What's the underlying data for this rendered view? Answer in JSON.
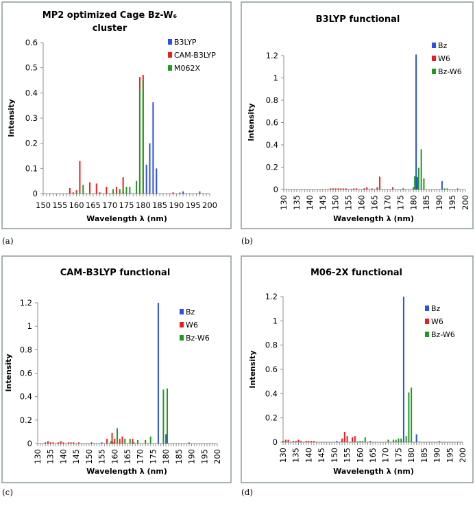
{
  "panel_labels": [
    "(a)",
    "(b)",
    "(c)",
    "(d)"
  ],
  "chart_data": [
    {
      "type": "bar",
      "title": [
        "MP2 optimized Cage Bz-W₆",
        "cluster"
      ],
      "xlabel": "Wavelength λ (nm)",
      "ylabel": "Intensity",
      "xlim": [
        150,
        200
      ],
      "ylim": [
        0,
        0.6
      ],
      "xticks": [
        "150",
        "155",
        "160",
        "165",
        "170",
        "175",
        "180",
        "185",
        "190",
        "195",
        "200"
      ],
      "yticks": [
        "0",
        "0.1",
        "0.2",
        "0.3",
        "0.4",
        "0.5",
        "0.6"
      ],
      "legend": "top-right",
      "series": [
        {
          "name": "B3LYP",
          "color": "#2b50e8",
          "points": [
            [
              174,
              0.009
            ],
            [
              175,
              0.004
            ],
            [
              181,
              0.115
            ],
            [
              182,
              0.2
            ],
            [
              183,
              0.363
            ],
            [
              184,
              0.1
            ],
            [
              191,
              0.004
            ],
            [
              192,
              0.009
            ],
            [
              197,
              0.009
            ]
          ]
        },
        {
          "name": "CAM-B3LYP",
          "color": "#f01c1c",
          "points": [
            [
              158,
              0.022
            ],
            [
              159,
              0.005
            ],
            [
              160,
              0.013
            ],
            [
              161,
              0.13
            ],
            [
              164,
              0.045
            ],
            [
              166,
              0.04
            ],
            [
              167,
              0.005
            ],
            [
              169,
              0.027
            ],
            [
              172,
              0.027
            ],
            [
              174,
              0.065
            ],
            [
              179,
              0.463
            ],
            [
              180,
              0.472
            ],
            [
              189,
              0.005
            ]
          ]
        },
        {
          "name": "M062X",
          "color": "#1e9a1e",
          "points": [
            [
              160,
              0.004
            ],
            [
              161,
              0.004
            ],
            [
              162,
              0.035
            ],
            [
              164,
              0.004
            ],
            [
              171,
              0.018
            ],
            [
              173,
              0.018
            ],
            [
              174,
              0.018
            ],
            [
              175,
              0.027
            ],
            [
              176,
              0.027
            ],
            [
              178,
              0.05
            ],
            [
              179,
              0.413
            ],
            [
              180,
              0.45
            ],
            [
              191,
              0.004
            ]
          ]
        }
      ]
    },
    {
      "type": "bar",
      "title": [
        "B3LYP functional"
      ],
      "xlabel": "Wavelength λ (nm)",
      "ylabel": "Intensity",
      "xlim": [
        130,
        200
      ],
      "ylim": [
        0,
        1.2
      ],
      "xticks": [
        "130",
        "135",
        "140",
        "145",
        "150",
        "155",
        "160",
        "165",
        "170",
        "175",
        "180",
        "185",
        "190",
        "195",
        "200"
      ],
      "yticks": [
        "0",
        "0.2",
        "0.4",
        "0.6",
        "0.8",
        "1",
        "1.2"
      ],
      "legend": "top-right",
      "series": [
        {
          "name": "Bz",
          "color": "#2b50e8",
          "points": [
            [
              156,
              0.005
            ],
            [
              161,
              0.01
            ],
            [
              181,
              1.21
            ],
            [
              181.5,
              0.11
            ],
            [
              191,
              0.075
            ]
          ]
        },
        {
          "name": "W6",
          "color": "#f01c1c",
          "points": [
            [
              148,
              0.01
            ],
            [
              149,
              0.01
            ],
            [
              150,
              0.01
            ],
            [
              151,
              0.01
            ],
            [
              152,
              0.01
            ],
            [
              153,
              0.01
            ],
            [
              154,
              0.01
            ],
            [
              157,
              0.01
            ],
            [
              158,
              0.01
            ],
            [
              161,
              0.01
            ],
            [
              162,
              0.02
            ],
            [
              164,
              0.01
            ],
            [
              166,
              0.02
            ],
            [
              167,
              0.115
            ],
            [
              172,
              0.02
            ],
            [
              176,
              0.01
            ],
            [
              180,
              0.02
            ]
          ]
        },
        {
          "name": "Bz-W6",
          "color": "#1e9a1e",
          "points": [
            [
              176,
              0.01
            ],
            [
              180,
              0.02
            ],
            [
              180.5,
              0.12
            ],
            [
              182,
              0.195
            ],
            [
              183,
              0.36
            ],
            [
              184,
              0.1
            ],
            [
              192,
              0.01
            ],
            [
              193,
              0.01
            ],
            [
              197,
              0.01
            ]
          ]
        }
      ]
    },
    {
      "type": "bar",
      "title": [
        "CAM-B3LYP functional"
      ],
      "xlabel": "Wavelength λ (nm)",
      "ylabel": "Intensity",
      "xlim": [
        130,
        200
      ],
      "ylim": [
        0,
        1.2
      ],
      "xticks": [
        "130",
        "135",
        "140",
        "145",
        "150",
        "155",
        "160",
        "165",
        "170",
        "175",
        "180",
        "185",
        "190",
        "195",
        "200"
      ],
      "yticks": [
        "0",
        "0.2",
        "0.4",
        "0.6",
        "0.8",
        "1",
        "1.2"
      ],
      "legend": "top-right",
      "series": [
        {
          "name": "Bz",
          "color": "#2b50e8",
          "points": [
            [
              151,
              0.01
            ],
            [
              155,
              0.01
            ],
            [
              177,
              1.2
            ],
            [
              180,
              0.08
            ]
          ]
        },
        {
          "name": "W6",
          "color": "#f01c1c",
          "points": [
            [
              133,
              0.01
            ],
            [
              134,
              0.02
            ],
            [
              135,
              0.01
            ],
            [
              136,
              0.01
            ],
            [
              138,
              0.01
            ],
            [
              139,
              0.02
            ],
            [
              140,
              0.01
            ],
            [
              142,
              0.01
            ],
            [
              143,
              0.01
            ],
            [
              144,
              0.01
            ],
            [
              146,
              0.01
            ],
            [
              157,
              0.04
            ],
            [
              159,
              0.09
            ],
            [
              160,
              0.04
            ],
            [
              162,
              0.04
            ],
            [
              163,
              0.06
            ],
            [
              167,
              0.04
            ]
          ]
        },
        {
          "name": "Bz-W6",
          "color": "#1e9a1e",
          "points": [
            [
              158.5,
              0.02
            ],
            [
              159.5,
              0.01
            ],
            [
              161,
              0.13
            ],
            [
              164,
              0.04
            ],
            [
              166,
              0.04
            ],
            [
              167.5,
              0.01
            ],
            [
              169,
              0.03
            ],
            [
              172,
              0.03
            ],
            [
              174,
              0.06
            ],
            [
              179,
              0.46
            ],
            [
              180.5,
              0.47
            ],
            [
              189,
              0.01
            ]
          ]
        }
      ]
    },
    {
      "type": "bar",
      "title": [
        "M06-2X functional"
      ],
      "xlabel": "Wavelength λ (nm)",
      "ylabel": "Intensity",
      "xlim": [
        130,
        200
      ],
      "ylim": [
        0,
        1.2
      ],
      "xticks": [
        "130",
        "135",
        "140",
        "145",
        "150",
        "155",
        "160",
        "165",
        "170",
        "175",
        "180",
        "185",
        "190",
        "195",
        "200"
      ],
      "yticks": [
        "0",
        "0.2",
        "0.4",
        "0.6",
        "0.8",
        "1",
        "1.2"
      ],
      "legend": "top-right",
      "series": [
        {
          "name": "Bz",
          "color": "#2b50e8",
          "points": [
            [
              151,
              0.01
            ],
            [
              159,
              0.005
            ],
            [
              177,
              1.2
            ],
            [
              182,
              0.065
            ]
          ]
        },
        {
          "name": "W6",
          "color": "#f01c1c",
          "points": [
            [
              130,
              0.01
            ],
            [
              131,
              0.02
            ],
            [
              132,
              0.02
            ],
            [
              134,
              0.01
            ],
            [
              135,
              0.01
            ],
            [
              136,
              0.02
            ],
            [
              137,
              0.01
            ],
            [
              139,
              0.01
            ],
            [
              140,
              0.01
            ],
            [
              141,
              0.01
            ],
            [
              142,
              0.01
            ],
            [
              153,
              0.03
            ],
            [
              154,
              0.085
            ],
            [
              155,
              0.05
            ],
            [
              157,
              0.04
            ],
            [
              158,
              0.05
            ]
          ]
        },
        {
          "name": "Bz-W6",
          "color": "#1e9a1e",
          "points": [
            [
              160,
              0.01
            ],
            [
              161,
              0.01
            ],
            [
              162,
              0.04
            ],
            [
              164,
              0.01
            ],
            [
              171,
              0.02
            ],
            [
              173,
              0.02
            ],
            [
              174,
              0.02
            ],
            [
              175,
              0.03
            ],
            [
              176,
              0.03
            ],
            [
              178,
              0.05
            ],
            [
              179,
              0.41
            ],
            [
              180,
              0.45
            ],
            [
              191,
              0.01
            ]
          ]
        }
      ]
    }
  ]
}
